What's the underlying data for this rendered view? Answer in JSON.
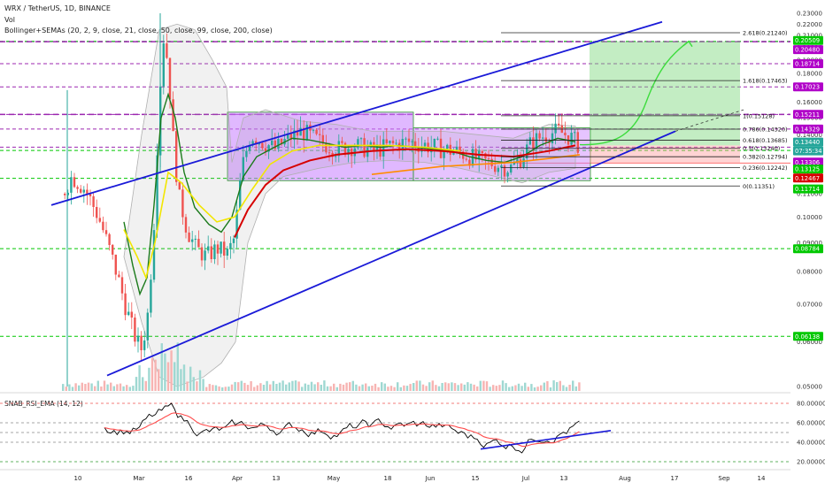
{
  "header": {
    "symbol": "WRX / TetherUS, 1D, BINANCE",
    "vol_label": "Vol",
    "indicator": "Bollinger+SEMAs (20, 2, 9, close, 21, close, 50, close, 99, close, 200, close)"
  },
  "rsi_title": "SNAB_RSI_EMA (14, 12)",
  "price_axis_ticks": [
    "0.23000",
    "0.22000",
    "0.21000",
    "0.20000",
    "0.19000",
    "0.18000",
    "0.17000",
    "0.16000",
    "0.15000",
    "0.14000",
    "0.13000",
    "0.12000",
    "0.11000",
    "0.10000",
    "0.09000",
    "0.08000",
    "0.07000",
    "0.06000",
    "0.05000"
  ],
  "rsi_axis_ticks": [
    "80.00000",
    "60.00000",
    "40.00000",
    "20.00000"
  ],
  "time_axis_ticks": [
    "10",
    "Mar",
    "16",
    "Apr",
    "13",
    "May",
    "18",
    "Jun",
    "15",
    "Jul",
    "13",
    "Aug",
    "17",
    "Sep",
    "14"
  ],
  "level_badges": [
    {
      "text": "0.20509",
      "bg": "#00c800",
      "fg": "#ffffff"
    },
    {
      "text": "0.20480",
      "bg": "#b000c8",
      "fg": "#ffffff"
    },
    {
      "text": "0.18714",
      "bg": "#b000c8",
      "fg": "#ffffff"
    },
    {
      "text": "0.17023",
      "bg": "#b000c8",
      "fg": "#ffffff"
    },
    {
      "text": "0.15211",
      "bg": "#b000c8",
      "fg": "#ffffff"
    },
    {
      "text": "0.14329",
      "bg": "#b000c8",
      "fg": "#ffffff"
    },
    {
      "text": "0.13440",
      "bg": "#26a69a",
      "fg": "#ffffff"
    },
    {
      "text": "07:35:34",
      "bg": "#26a69a",
      "fg": "#ffffff"
    },
    {
      "text": "0.13306",
      "bg": "#b000c8",
      "fg": "#ffffff"
    },
    {
      "text": "0.13125",
      "bg": "#00c800",
      "fg": "#ffffff"
    },
    {
      "text": "0.12467",
      "bg": "#d80000",
      "fg": "#ffffff"
    },
    {
      "text": "0.11714",
      "bg": "#00c800",
      "fg": "#ffffff"
    },
    {
      "text": "0.08784",
      "bg": "#00c800",
      "fg": "#ffffff"
    },
    {
      "text": "0.06138",
      "bg": "#00c800",
      "fg": "#ffffff"
    }
  ],
  "fib_labels": [
    "2.618(0.21240)",
    "1.618(0.17463)",
    "1(0.15128)",
    "0.786(0.14320)",
    "0.618(0.13685)",
    "0.5(0.13240)",
    "0.382(0.12794)",
    "0.236(0.12242)",
    "0(0.11351)"
  ],
  "colors": {
    "up": "#26a69a",
    "down": "#ef5350",
    "purple_dash": "#9c27b0",
    "green_dash": "#00c800",
    "channel": "#1a1ad8",
    "box_fill": "#c77dff",
    "target_fill": "#7bd67b",
    "ema_dark_green": "#1b7a1b",
    "ema_yellow": "#f2e600",
    "ema_red": "#d60000",
    "ema_orange": "#ff8c00",
    "rsi_line": "#000000",
    "rsi_ema": "#ff4d4d"
  },
  "chart_data": {
    "type": "candlestick",
    "title": "WRX / TetherUS, 1D, BINANCE",
    "x_ticks": [
      "10",
      "Mar",
      "16",
      "Apr",
      "13",
      "May",
      "18",
      "Jun",
      "15",
      "Jul",
      "13",
      "Aug",
      "17",
      "Sep",
      "14"
    ],
    "ylim": [
      0.045,
      0.235
    ],
    "y_scale": "log",
    "horizontal_levels": {
      "purple_dashed": [
        0.2048,
        0.18714,
        0.17023,
        0.15211,
        0.14329,
        0.13306
      ],
      "green_dashed": [
        0.20509,
        0.13125,
        0.11714,
        0.08784,
        0.06138
      ],
      "red": [
        0.12467
      ]
    },
    "fibonacci": [
      {
        "ratio": "2.618",
        "price": 0.2124
      },
      {
        "ratio": "1.618",
        "price": 0.17463
      },
      {
        "ratio": "1",
        "price": 0.15128
      },
      {
        "ratio": "0.786",
        "price": 0.1432
      },
      {
        "ratio": "0.618",
        "price": 0.13685
      },
      {
        "ratio": "0.5",
        "price": 0.1324
      },
      {
        "ratio": "0.382",
        "price": 0.12794
      },
      {
        "ratio": "0.236",
        "price": 0.12242
      },
      {
        "ratio": "0",
        "price": 0.11351
      }
    ],
    "last_price": 0.1344,
    "countdown": "07:35:34",
    "rsi": {
      "title": "SNAB_RSI_EMA (14, 12)",
      "ylim": [
        15,
        90
      ],
      "ticks": [
        80,
        60,
        40,
        20
      ]
    },
    "grid": false
  }
}
